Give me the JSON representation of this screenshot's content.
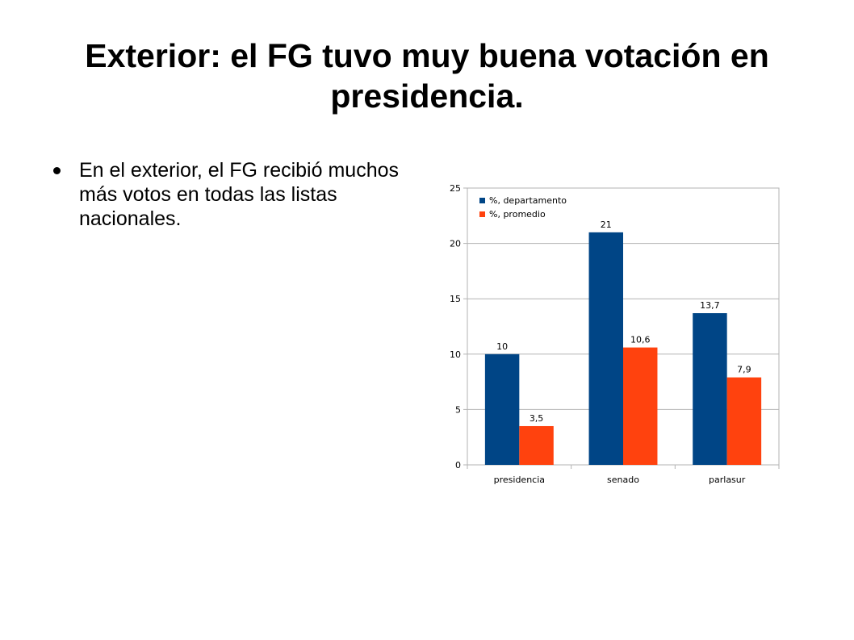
{
  "slide": {
    "title": "Exterior: el FG tuvo muy buena votación en presidencia.",
    "bullets": [
      "En el exterior, el FG recibió muchos más votos en todas las listas nacionales."
    ]
  },
  "chart_data": {
    "type": "bar",
    "title": "",
    "xlabel": "",
    "ylabel": "",
    "categories": [
      "presidencia",
      "senado",
      "parlasur"
    ],
    "series": [
      {
        "name": "%, departamento",
        "values": [
          10,
          21,
          13.7
        ],
        "labels": [
          "10",
          "21",
          "13,7"
        ],
        "color": "#004586"
      },
      {
        "name": "%, promedio",
        "values": [
          3.5,
          10.6,
          7.9
        ],
        "labels": [
          "3,5",
          "10,6",
          "7,9"
        ],
        "color": "#ff420e"
      }
    ],
    "ylim": [
      0,
      25
    ],
    "yticks": [
      0,
      5,
      10,
      15,
      20,
      25
    ],
    "grid": true,
    "legend": "top-left"
  }
}
